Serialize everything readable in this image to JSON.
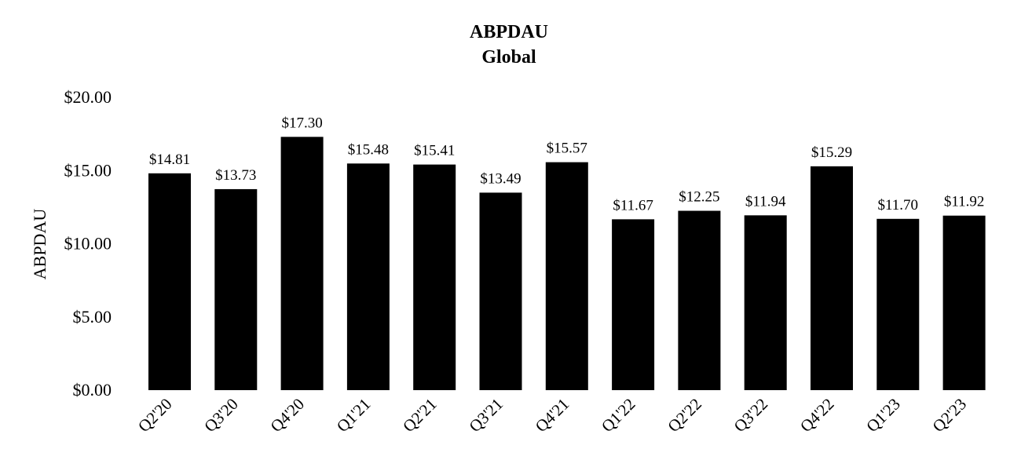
{
  "chart_data": {
    "type": "bar",
    "title": "ABPDAU",
    "subtitle": "Global",
    "xlabel": "",
    "ylabel": "ABPDAU",
    "ylim": [
      0,
      20
    ],
    "yticks": [
      "$0.00",
      "$5.00",
      "$10.00",
      "$15.00",
      "$20.00"
    ],
    "ytick_values": [
      0,
      5,
      10,
      15,
      20
    ],
    "categories": [
      "Q2'20",
      "Q3'20",
      "Q4'20",
      "Q1'21",
      "Q2'21",
      "Q3'21",
      "Q4'21",
      "Q1'22",
      "Q2'22",
      "Q3'22",
      "Q4'22",
      "Q1'23",
      "Q2'23"
    ],
    "values": [
      14.81,
      13.73,
      17.3,
      15.48,
      15.41,
      13.49,
      15.57,
      11.67,
      12.25,
      11.94,
      15.29,
      11.7,
      11.92
    ],
    "data_labels": [
      "$14.81",
      "$13.73",
      "$17.30",
      "$15.48",
      "$15.41",
      "$13.49",
      "$15.57",
      "$11.67",
      "$12.25",
      "$11.94",
      "$15.29",
      "$11.70",
      "$11.92"
    ],
    "bar_color": "#000000",
    "grid": false,
    "legend": "none"
  }
}
